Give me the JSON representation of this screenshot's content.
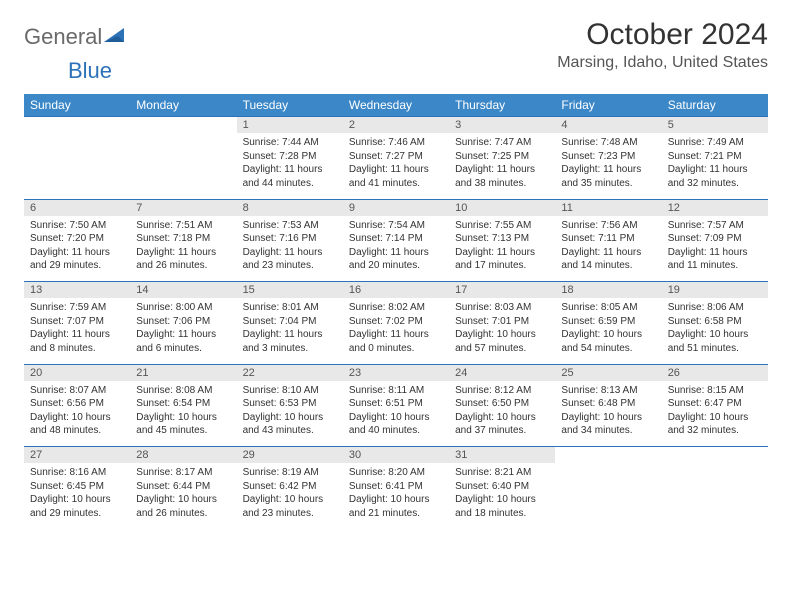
{
  "brand": {
    "general": "General",
    "blue": "Blue"
  },
  "title": "October 2024",
  "location": "Marsing, Idaho, United States",
  "colors": {
    "header_bg": "#3b87c8",
    "header_text": "#ffffff",
    "daynum_bg": "#e8e8e8",
    "rule": "#2d72b8",
    "logo_blue": "#2d72b8",
    "logo_gray": "#6a6a6a",
    "body_text": "#333333"
  },
  "typography": {
    "title_fontsize": 30,
    "location_fontsize": 16,
    "dayheader_fontsize": 12,
    "daynum_fontsize": 11,
    "cell_fontsize": 10
  },
  "day_headers": [
    "Sunday",
    "Monday",
    "Tuesday",
    "Wednesday",
    "Thursday",
    "Friday",
    "Saturday"
  ],
  "weeks": [
    [
      null,
      null,
      {
        "n": "1",
        "sr": "7:44 AM",
        "ss": "7:28 PM",
        "dl": "11 hours and 44 minutes."
      },
      {
        "n": "2",
        "sr": "7:46 AM",
        "ss": "7:27 PM",
        "dl": "11 hours and 41 minutes."
      },
      {
        "n": "3",
        "sr": "7:47 AM",
        "ss": "7:25 PM",
        "dl": "11 hours and 38 minutes."
      },
      {
        "n": "4",
        "sr": "7:48 AM",
        "ss": "7:23 PM",
        "dl": "11 hours and 35 minutes."
      },
      {
        "n": "5",
        "sr": "7:49 AM",
        "ss": "7:21 PM",
        "dl": "11 hours and 32 minutes."
      }
    ],
    [
      {
        "n": "6",
        "sr": "7:50 AM",
        "ss": "7:20 PM",
        "dl": "11 hours and 29 minutes."
      },
      {
        "n": "7",
        "sr": "7:51 AM",
        "ss": "7:18 PM",
        "dl": "11 hours and 26 minutes."
      },
      {
        "n": "8",
        "sr": "7:53 AM",
        "ss": "7:16 PM",
        "dl": "11 hours and 23 minutes."
      },
      {
        "n": "9",
        "sr": "7:54 AM",
        "ss": "7:14 PM",
        "dl": "11 hours and 20 minutes."
      },
      {
        "n": "10",
        "sr": "7:55 AM",
        "ss": "7:13 PM",
        "dl": "11 hours and 17 minutes."
      },
      {
        "n": "11",
        "sr": "7:56 AM",
        "ss": "7:11 PM",
        "dl": "11 hours and 14 minutes."
      },
      {
        "n": "12",
        "sr": "7:57 AM",
        "ss": "7:09 PM",
        "dl": "11 hours and 11 minutes."
      }
    ],
    [
      {
        "n": "13",
        "sr": "7:59 AM",
        "ss": "7:07 PM",
        "dl": "11 hours and 8 minutes."
      },
      {
        "n": "14",
        "sr": "8:00 AM",
        "ss": "7:06 PM",
        "dl": "11 hours and 6 minutes."
      },
      {
        "n": "15",
        "sr": "8:01 AM",
        "ss": "7:04 PM",
        "dl": "11 hours and 3 minutes."
      },
      {
        "n": "16",
        "sr": "8:02 AM",
        "ss": "7:02 PM",
        "dl": "11 hours and 0 minutes."
      },
      {
        "n": "17",
        "sr": "8:03 AM",
        "ss": "7:01 PM",
        "dl": "10 hours and 57 minutes."
      },
      {
        "n": "18",
        "sr": "8:05 AM",
        "ss": "6:59 PM",
        "dl": "10 hours and 54 minutes."
      },
      {
        "n": "19",
        "sr": "8:06 AM",
        "ss": "6:58 PM",
        "dl": "10 hours and 51 minutes."
      }
    ],
    [
      {
        "n": "20",
        "sr": "8:07 AM",
        "ss": "6:56 PM",
        "dl": "10 hours and 48 minutes."
      },
      {
        "n": "21",
        "sr": "8:08 AM",
        "ss": "6:54 PM",
        "dl": "10 hours and 45 minutes."
      },
      {
        "n": "22",
        "sr": "8:10 AM",
        "ss": "6:53 PM",
        "dl": "10 hours and 43 minutes."
      },
      {
        "n": "23",
        "sr": "8:11 AM",
        "ss": "6:51 PM",
        "dl": "10 hours and 40 minutes."
      },
      {
        "n": "24",
        "sr": "8:12 AM",
        "ss": "6:50 PM",
        "dl": "10 hours and 37 minutes."
      },
      {
        "n": "25",
        "sr": "8:13 AM",
        "ss": "6:48 PM",
        "dl": "10 hours and 34 minutes."
      },
      {
        "n": "26",
        "sr": "8:15 AM",
        "ss": "6:47 PM",
        "dl": "10 hours and 32 minutes."
      }
    ],
    [
      {
        "n": "27",
        "sr": "8:16 AM",
        "ss": "6:45 PM",
        "dl": "10 hours and 29 minutes."
      },
      {
        "n": "28",
        "sr": "8:17 AM",
        "ss": "6:44 PM",
        "dl": "10 hours and 26 minutes."
      },
      {
        "n": "29",
        "sr": "8:19 AM",
        "ss": "6:42 PM",
        "dl": "10 hours and 23 minutes."
      },
      {
        "n": "30",
        "sr": "8:20 AM",
        "ss": "6:41 PM",
        "dl": "10 hours and 21 minutes."
      },
      {
        "n": "31",
        "sr": "8:21 AM",
        "ss": "6:40 PM",
        "dl": "10 hours and 18 minutes."
      },
      null,
      null
    ]
  ],
  "labels": {
    "sunrise": "Sunrise: ",
    "sunset": "Sunset: ",
    "daylight": "Daylight: "
  }
}
